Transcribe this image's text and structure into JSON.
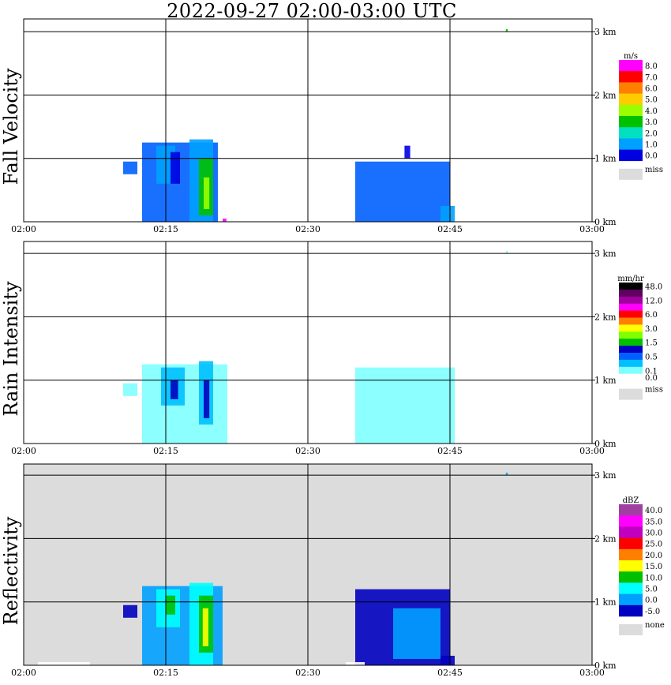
{
  "title": "2022-09-27   02:00-03:00 UTC",
  "colors": {
    "miss": "#dcdcdc",
    "grid": "#000000"
  },
  "x_ticks": [
    "02:00",
    "02:15",
    "02:30",
    "02:45",
    "03:00"
  ],
  "y_ticks": [
    "0 km",
    "1 km",
    "2 km",
    "3 km"
  ],
  "chart_data": [
    {
      "type": "heatmap",
      "name": "fall-velocity",
      "ylabel": "Fall Velocity",
      "x_range": [
        "02:00",
        "03:00"
      ],
      "y_range_km": [
        0,
        3.5
      ],
      "missing_background": false,
      "legend": {
        "unit": "m/s",
        "bins": [
          {
            "label": "8.0",
            "color": "#ff00ff"
          },
          {
            "label": "7.0",
            "color": "#ff0000"
          },
          {
            "label": "6.0",
            "color": "#ff8000"
          },
          {
            "label": "5.0",
            "color": "#ffcc00"
          },
          {
            "label": "4.0",
            "color": "#99ff00"
          },
          {
            "label": "3.0",
            "color": "#00c000"
          },
          {
            "label": "2.0",
            "color": "#00e0c0"
          },
          {
            "label": "1.0",
            "color": "#00a0ff"
          },
          {
            "label": "0.0",
            "color": "#0000e0"
          }
        ],
        "miss_label": "miss"
      },
      "echoes": [
        {
          "x0": 10.5,
          "x1": 12.0,
          "y0": 0.75,
          "y1": 0.95,
          "color": "#0060ff"
        },
        {
          "x0": 12.5,
          "x1": 20.5,
          "y0": 0.0,
          "y1": 1.25,
          "color": "#0060ff"
        },
        {
          "x0": 14.0,
          "x1": 16.0,
          "y0": 0.6,
          "y1": 1.2,
          "color": "#00a0ff"
        },
        {
          "x0": 17.5,
          "x1": 20.0,
          "y0": 0.0,
          "y1": 1.3,
          "color": "#00a0ff"
        },
        {
          "x0": 18.5,
          "x1": 20.0,
          "y0": 0.1,
          "y1": 1.0,
          "color": "#00c000"
        },
        {
          "x0": 19.0,
          "x1": 19.6,
          "y0": 0.2,
          "y1": 0.7,
          "color": "#99ff00"
        },
        {
          "x0": 15.5,
          "x1": 16.5,
          "y0": 0.6,
          "y1": 1.1,
          "color": "#0000e0"
        },
        {
          "x0": 21.0,
          "x1": 21.4,
          "y0": 0.0,
          "y1": 0.05,
          "color": "#ff00ff"
        },
        {
          "x0": 35.0,
          "x1": 45.0,
          "y0": 0.0,
          "y1": 0.95,
          "color": "#0060ff"
        },
        {
          "x0": 40.2,
          "x1": 40.8,
          "y0": 1.0,
          "y1": 1.2,
          "color": "#0000e0"
        },
        {
          "x0": 44.0,
          "x1": 45.5,
          "y0": 0.0,
          "y1": 0.25,
          "color": "#00a0ff"
        },
        {
          "x0": 50.9,
          "x1": 51.1,
          "y0": 3.0,
          "y1": 3.04,
          "color": "#00c000"
        }
      ]
    },
    {
      "type": "heatmap",
      "name": "rain-intensity",
      "ylabel": "Rain Intensity",
      "x_range": [
        "02:00",
        "03:00"
      ],
      "y_range_km": [
        0,
        3.5
      ],
      "missing_background": false,
      "legend": {
        "unit": "mm/hr",
        "bins": [
          {
            "label": "48.0",
            "color": "#000000"
          },
          {
            "label": "",
            "color": "#600060"
          },
          {
            "label": "12.0",
            "color": "#a000a0"
          },
          {
            "label": "",
            "color": "#ff00ff"
          },
          {
            "label": "6.0",
            "color": "#ff0000"
          },
          {
            "label": "",
            "color": "#ff8000"
          },
          {
            "label": "3.0",
            "color": "#ffff00"
          },
          {
            "label": "",
            "color": "#80ff00"
          },
          {
            "label": "1.5",
            "color": "#00c000"
          },
          {
            "label": "",
            "color": "#0000c0"
          },
          {
            "label": "0.5",
            "color": "#0060ff"
          },
          {
            "label": "",
            "color": "#00c0ff"
          },
          {
            "label": "0.1",
            "color": "#80ffff"
          },
          {
            "label": "0.0",
            "color": "#ffffff"
          }
        ],
        "miss_label": "miss"
      },
      "echoes": [
        {
          "x0": 10.5,
          "x1": 12.0,
          "y0": 0.75,
          "y1": 0.95,
          "color": "#80ffff"
        },
        {
          "x0": 12.5,
          "x1": 21.5,
          "y0": 0.0,
          "y1": 1.25,
          "color": "#80ffff"
        },
        {
          "x0": 14.5,
          "x1": 17.0,
          "y0": 0.6,
          "y1": 1.2,
          "color": "#00c0ff"
        },
        {
          "x0": 18.5,
          "x1": 20.0,
          "y0": 0.3,
          "y1": 1.3,
          "color": "#00c0ff"
        },
        {
          "x0": 15.5,
          "x1": 16.3,
          "y0": 0.7,
          "y1": 1.0,
          "color": "#0000c0"
        },
        {
          "x0": 19.0,
          "x1": 19.6,
          "y0": 0.4,
          "y1": 1.0,
          "color": "#0000c0"
        },
        {
          "x0": 35.0,
          "x1": 45.5,
          "y0": 0.0,
          "y1": 1.2,
          "color": "#80ffff"
        },
        {
          "x0": 50.9,
          "x1": 51.1,
          "y0": 3.0,
          "y1": 3.04,
          "color": "#80ffff"
        }
      ]
    },
    {
      "type": "heatmap",
      "name": "reflectivity",
      "ylabel": "Reflectivity",
      "x_range": [
        "02:00",
        "03:00"
      ],
      "y_range_km": [
        0,
        3.5
      ],
      "missing_background": true,
      "legend": {
        "unit": "dBZ",
        "bins": [
          {
            "label": "40.0",
            "color": "#a040a0"
          },
          {
            "label": "35.0",
            "color": "#ff00ff"
          },
          {
            "label": "30.0",
            "color": "#c000c0"
          },
          {
            "label": "25.0",
            "color": "#ff0000"
          },
          {
            "label": "20.0",
            "color": "#ff8000"
          },
          {
            "label": "15.0",
            "color": "#ffff00"
          },
          {
            "label": "10.0",
            "color": "#00c000"
          },
          {
            "label": "5.0",
            "color": "#00ffff"
          },
          {
            "label": "0.0",
            "color": "#00a0ff"
          },
          {
            "label": "-5.0",
            "color": "#0000c0"
          }
        ],
        "miss_label": "none"
      },
      "echoes": [
        {
          "x0": 10.5,
          "x1": 12.0,
          "y0": 0.75,
          "y1": 0.95,
          "color": "#0000c0"
        },
        {
          "x0": 12.5,
          "x1": 21.0,
          "y0": 0.0,
          "y1": 1.25,
          "color": "#00a0ff"
        },
        {
          "x0": 14.0,
          "x1": 16.5,
          "y0": 0.6,
          "y1": 1.2,
          "color": "#00ffff"
        },
        {
          "x0": 17.5,
          "x1": 20.0,
          "y0": 0.0,
          "y1": 1.3,
          "color": "#00ffff"
        },
        {
          "x0": 18.5,
          "x1": 20.0,
          "y0": 0.2,
          "y1": 1.1,
          "color": "#00c000"
        },
        {
          "x0": 18.9,
          "x1": 19.5,
          "y0": 0.3,
          "y1": 0.9,
          "color": "#ffff00"
        },
        {
          "x0": 15.0,
          "x1": 16.0,
          "y0": 0.8,
          "y1": 1.1,
          "color": "#00c000"
        },
        {
          "x0": 35.0,
          "x1": 45.0,
          "y0": 0.0,
          "y1": 1.2,
          "color": "#0000c0"
        },
        {
          "x0": 39.0,
          "x1": 44.0,
          "y0": 0.1,
          "y1": 0.9,
          "color": "#00a0ff"
        },
        {
          "x0": 44.0,
          "x1": 45.5,
          "y0": 0.0,
          "y1": 0.15,
          "color": "#0000c0"
        },
        {
          "x0": 1.5,
          "x1": 7.0,
          "y0": 0.0,
          "y1": 0.05,
          "color": "#ffffff"
        },
        {
          "x0": 34.0,
          "x1": 36.0,
          "y0": 0.0,
          "y1": 0.05,
          "color": "#ffffff"
        },
        {
          "x0": 50.9,
          "x1": 51.1,
          "y0": 3.0,
          "y1": 3.04,
          "color": "#00a0ff"
        }
      ]
    }
  ]
}
